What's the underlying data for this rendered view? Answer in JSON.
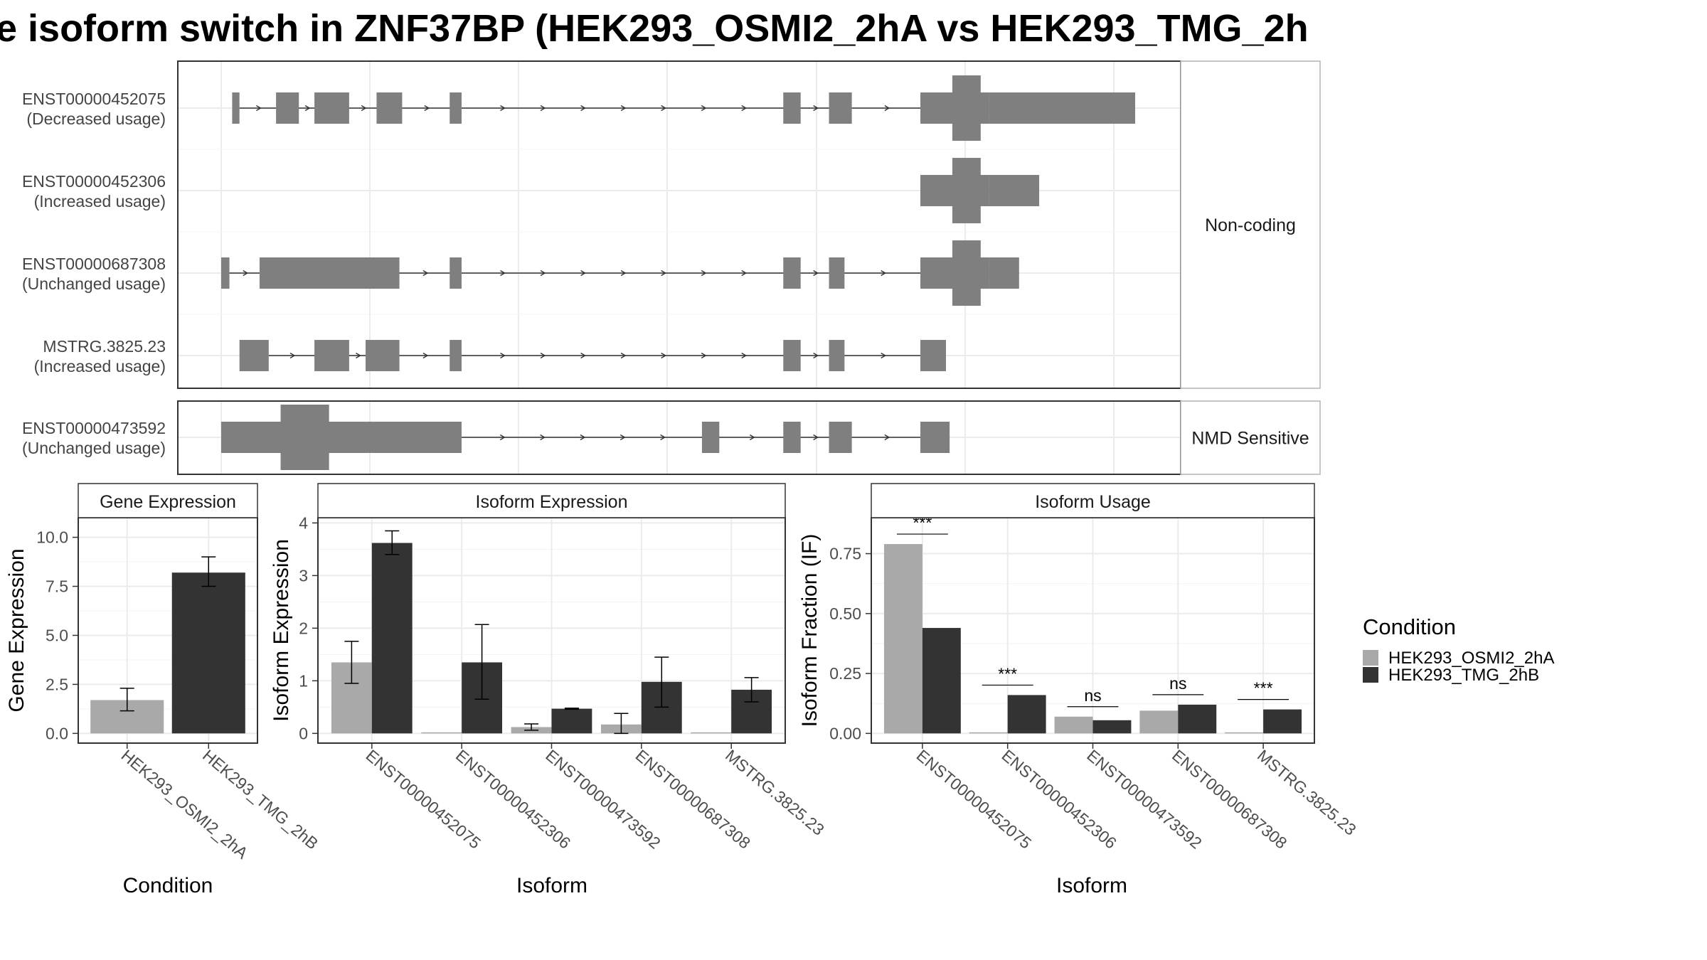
{
  "title": "e isoform switch in ZNF37BP (HEK293_OSMI2_2hA vs HEK293_TMG_2h",
  "colors": {
    "exon": "#7f7f7f",
    "intron": "#333333",
    "cond_a": "#a9a9a9",
    "cond_b": "#333333",
    "grid": "#ebebeb",
    "panel_border": "#333333",
    "strip_border": "#b3b3b3"
  },
  "structure": {
    "coord_range": [
      0,
      1000
    ],
    "facets": [
      {
        "name": "Non-coding",
        "transcripts": [
          {
            "id": "ENST00000452075",
            "usage": "(Decreased usage)",
            "exons": [
              [
                12,
                20
              ],
              [
                60,
                85
              ],
              [
                102,
                140
              ],
              [
                170,
                198
              ],
              [
                250,
                263
              ],
              [
                615,
                634
              ],
              [
                665,
                690
              ],
              [
                765,
                840
              ],
              [
                840,
                1000
              ]
            ],
            "cds": [
              [
                800,
                831
              ]
            ],
            "intron_span": [
              20,
              765
            ]
          },
          {
            "id": "ENST00000452306",
            "usage": "(Increased usage)",
            "exons": [
              [
                765,
                840
              ],
              [
                840,
                895
              ]
            ],
            "cds": [
              [
                800,
                831
              ]
            ],
            "intron_span": null
          },
          {
            "id": "ENST00000687308",
            "usage": "(Unchanged usage)",
            "exons": [
              [
                0,
                9
              ],
              [
                42,
                195
              ],
              [
                250,
                263
              ],
              [
                615,
                634
              ],
              [
                665,
                682
              ],
              [
                765,
                840
              ],
              [
                840,
                873
              ]
            ],
            "cds": [
              [
                800,
                831
              ]
            ],
            "intron_span": [
              9,
              765
            ]
          },
          {
            "id": "MSTRG.3825.23",
            "usage": "(Increased usage)",
            "exons": [
              [
                20,
                52
              ],
              [
                102,
                140
              ],
              [
                158,
                195
              ],
              [
                250,
                263
              ],
              [
                615,
                634
              ],
              [
                665,
                682
              ],
              [
                765,
                793
              ]
            ],
            "cds": [],
            "intron_span": [
              52,
              765
            ]
          }
        ]
      },
      {
        "name": "NMD Sensitive",
        "transcripts": [
          {
            "id": "ENST00000473592",
            "usage": "(Unchanged usage)",
            "exons": [
              [
                0,
                263
              ],
              [
                526,
                545
              ],
              [
                615,
                634
              ],
              [
                665,
                690
              ],
              [
                765,
                797
              ]
            ],
            "cds": [
              [
                65,
                118
              ]
            ],
            "intron_span": [
              263,
              765
            ]
          }
        ]
      }
    ]
  },
  "chart_data": [
    {
      "type": "bar",
      "title": "Gene Expression",
      "xlabel": "Condition",
      "ylabel": "Gene Expression",
      "ylim": [
        0,
        11
      ],
      "yticks": [
        "0.0",
        "2.5",
        "5.0",
        "7.5",
        "10.0"
      ],
      "categories": [
        "HEK293_OSMI2_2hA",
        "HEK293_TMG_2hB"
      ],
      "series": [
        {
          "name": "HEK293_OSMI2_2hA",
          "values": [
            1.7,
            null
          ],
          "err_low": [
            1.15,
            null
          ],
          "err_high": [
            2.3,
            null
          ]
        },
        {
          "name": "HEK293_TMG_2hB",
          "values": [
            null,
            8.2
          ],
          "err_low": [
            null,
            7.5
          ],
          "err_high": [
            null,
            9.0
          ]
        }
      ]
    },
    {
      "type": "bar",
      "title": "Isoform Expression",
      "xlabel": "Isoform",
      "ylabel": "Isoform Expression",
      "ylim": [
        0,
        4.1
      ],
      "yticks": [
        "0",
        "1",
        "2",
        "3",
        "4"
      ],
      "categories": [
        "ENST00000452075",
        "ENST00000452306",
        "ENST00000473592",
        "ENST00000687308",
        "MSTRG.3825.23"
      ],
      "series": [
        {
          "name": "HEK293_OSMI2_2hA",
          "values": [
            1.35,
            0.0,
            0.12,
            0.17,
            0.0
          ],
          "err_low": [
            0.95,
            0.0,
            0.06,
            0.0,
            0.0
          ],
          "err_high": [
            1.75,
            0.0,
            0.18,
            0.38,
            0.0
          ]
        },
        {
          "name": "HEK293_TMG_2hB",
          "values": [
            3.62,
            1.35,
            0.47,
            0.98,
            0.83
          ],
          "err_low": [
            3.4,
            0.65,
            0.46,
            0.5,
            0.6
          ],
          "err_high": [
            3.85,
            2.07,
            0.48,
            1.45,
            1.06
          ]
        }
      ]
    },
    {
      "type": "bar",
      "title": "Isoform Usage",
      "xlabel": "Isoform",
      "ylabel": "Isoform Fraction (IF)",
      "ylim": [
        0,
        0.9
      ],
      "yticks": [
        "0.00",
        "0.25",
        "0.50",
        "0.75"
      ],
      "categories": [
        "ENST00000452075",
        "ENST00000452306",
        "ENST00000473592",
        "ENST00000687308",
        "MSTRG.3825.23"
      ],
      "series": [
        {
          "name": "HEK293_OSMI2_2hA",
          "values": [
            0.79,
            0.0,
            0.07,
            0.095,
            0.0
          ]
        },
        {
          "name": "HEK293_TMG_2hB",
          "values": [
            0.44,
            0.16,
            0.055,
            0.12,
            0.1
          ]
        }
      ],
      "significance": [
        "***",
        "***",
        "ns",
        "ns",
        "***"
      ]
    }
  ],
  "legend": {
    "title": "Condition",
    "items": [
      "HEK293_OSMI2_2hA",
      "HEK293_TMG_2hB"
    ]
  }
}
